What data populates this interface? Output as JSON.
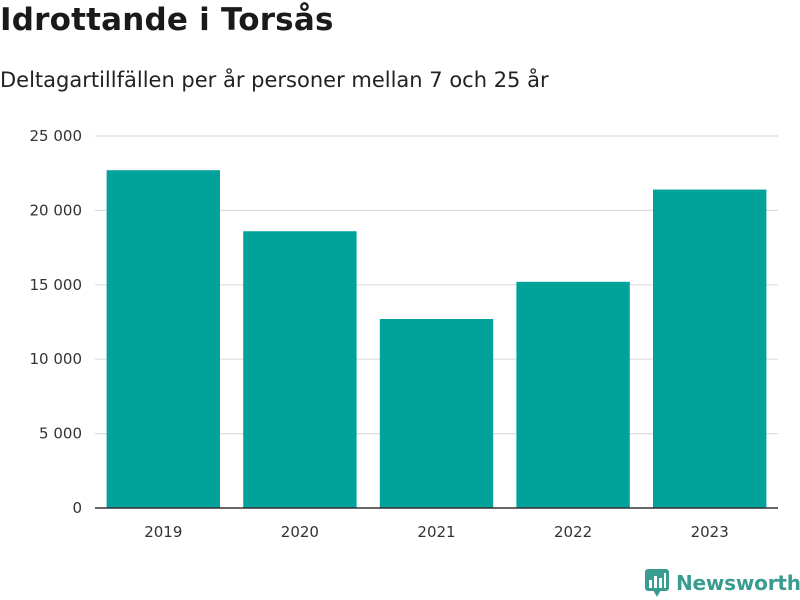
{
  "header": {
    "title": "Idrottande i Torsås",
    "subtitle": "Deltagartillfällen per år personer mellan 7 och 25 år"
  },
  "brand": {
    "name": "Newsworthy",
    "icon": "newsworthy-logo-icon",
    "color": "#3a9b91"
  },
  "colors": {
    "bar": "#00a29a",
    "grid": "#dddddd",
    "axis": "#333333"
  },
  "chart_data": {
    "type": "bar",
    "categories": [
      "2019",
      "2020",
      "2021",
      "2022",
      "2023"
    ],
    "values": [
      22700,
      18600,
      12700,
      15200,
      21400
    ],
    "ylim": [
      0,
      25000
    ],
    "yticks": [
      0,
      5000,
      10000,
      15000,
      20000,
      25000
    ],
    "ytick_labels": [
      "0",
      "5 000",
      "10 000",
      "15 000",
      "20 000",
      "25 000"
    ],
    "grid": true,
    "legend": "none"
  }
}
